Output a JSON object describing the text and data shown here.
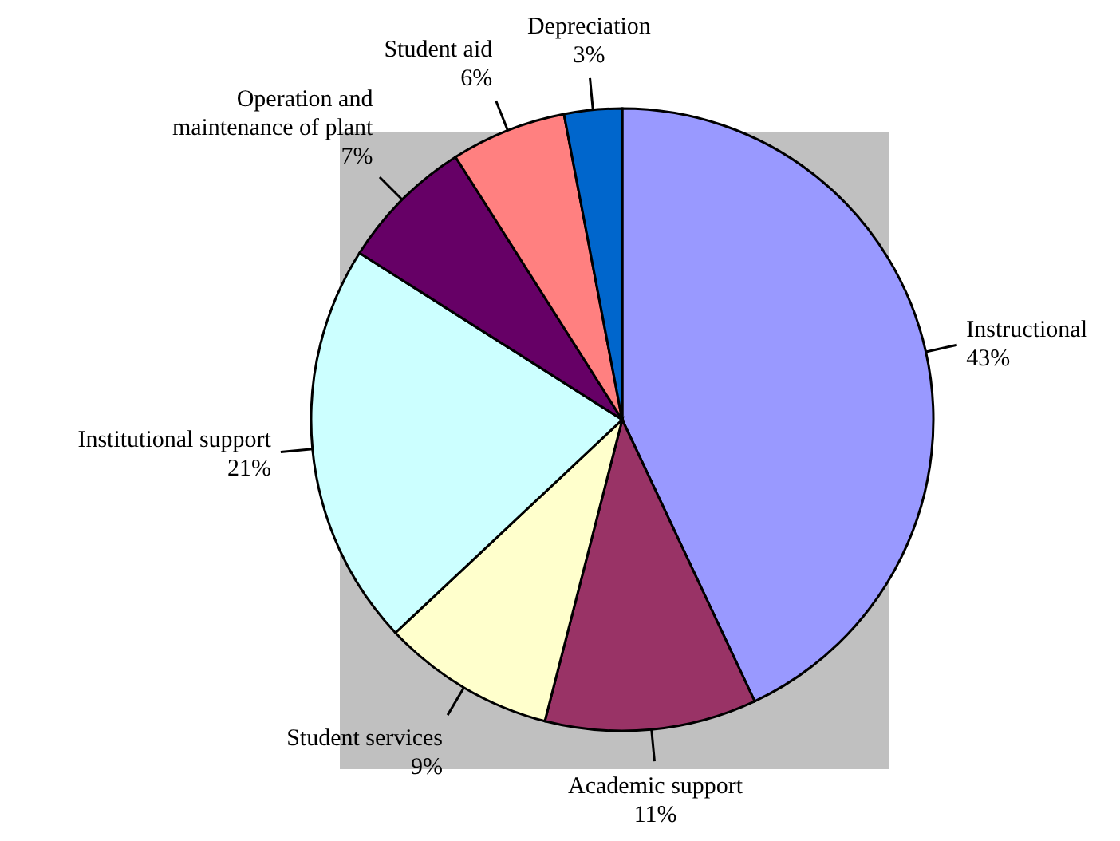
{
  "chart_data": {
    "type": "pie",
    "categories": [
      "Instructional",
      "Academic support",
      "Student services",
      "Institutional support",
      "Operation and maintenance of plant",
      "Student aid",
      "Depreciation"
    ],
    "values": [
      43,
      11,
      9,
      21,
      7,
      6,
      3
    ],
    "value_labels": [
      "43%",
      "11%",
      "9%",
      "21%",
      "7%",
      "6%",
      "3%"
    ],
    "colors": [
      "#9999ff",
      "#993366",
      "#ffffcc",
      "#ccffff",
      "#660066",
      "#ff8080",
      "#0066cc"
    ],
    "legend": false
  }
}
